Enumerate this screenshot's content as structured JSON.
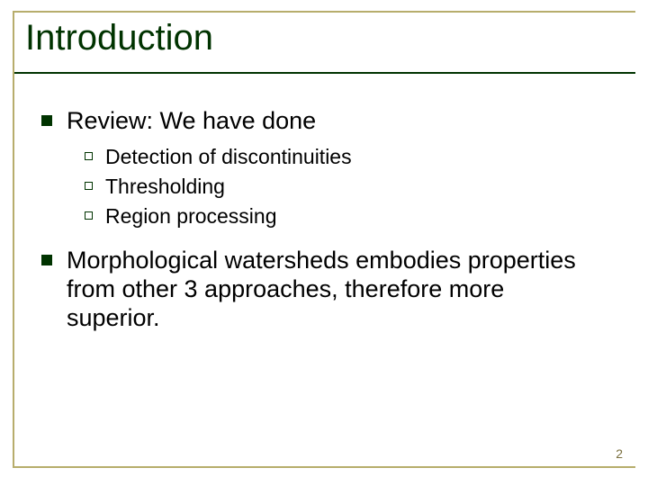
{
  "slide": {
    "title": "Introduction",
    "page_number": "2",
    "colors": {
      "title_color": "#003300",
      "frame_color": "#b7ad6c",
      "underline_color": "#003300",
      "body_text": "#000000",
      "pagenum_color": "#7a6f3e",
      "background": "#ffffff",
      "l1_bullet_fill": "#003300",
      "l2_bullet_border": "#003300"
    },
    "typography": {
      "title_fontsize_pt": 40,
      "l1_fontsize_pt": 27,
      "l2_fontsize_pt": 23,
      "pagenum_fontsize_pt": 14,
      "font_family": "Arial"
    },
    "bullets": [
      {
        "text": "Review: We have done",
        "sub": [
          {
            "text": "Detection of discontinuities"
          },
          {
            "text": "Thresholding"
          },
          {
            "text": "Region processing"
          }
        ]
      },
      {
        "text": "Morphological watersheds embodies properties from other 3 approaches, therefore more superior.",
        "sub": []
      }
    ]
  }
}
